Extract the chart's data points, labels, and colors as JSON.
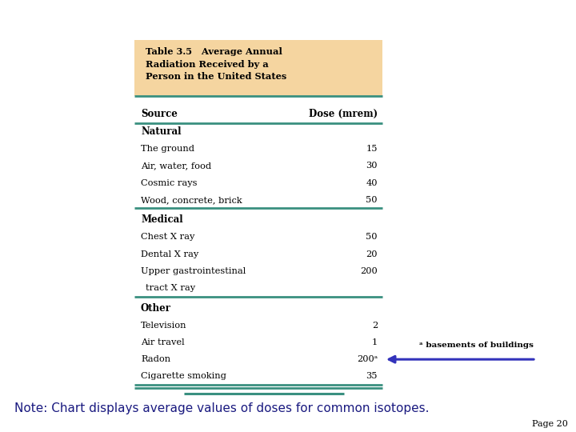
{
  "title_line1": "Table 3.5   Average Annual",
  "title_line2": "Radiation Received by a",
  "title_line3": "Person in the United States",
  "title_bg": "#f5d5a0",
  "col_source": "Source",
  "col_dose": "Dose (mrem)",
  "sections": [
    {
      "header": "Natural",
      "rows": [
        {
          "source": "The ground",
          "dose": "15"
        },
        {
          "source": "Air, water, food",
          "dose": "30"
        },
        {
          "source": "Cosmic rays",
          "dose": "40"
        },
        {
          "source": "Wood, concrete, brick",
          "dose": "50"
        }
      ]
    },
    {
      "header": "Medical",
      "rows": [
        {
          "source": "Chest X ray",
          "dose": "50"
        },
        {
          "source": "Dental X ray",
          "dose": "20"
        },
        {
          "source": "Upper gastrointestinal",
          "dose": "200",
          "dose_row": 0
        },
        {
          "source": "   tract X ray",
          "dose": "",
          "dose_row": -1
        }
      ]
    },
    {
      "header": "Other",
      "rows": [
        {
          "source": "Television",
          "dose": "2"
        },
        {
          "source": "Air travel",
          "dose": "1"
        },
        {
          "source": "Radon",
          "dose": "200ᵃ",
          "is_radon": true
        },
        {
          "source": "Cigarette smoking",
          "dose": "35"
        }
      ]
    }
  ],
  "footnote_label": "ᵃ basements of buildings",
  "arrow_color": "#3333bb",
  "note_text": "Note: Chart displays average values of doses for common isotopes.",
  "page_text": "Page 20",
  "teal_line_color": "#3a9080",
  "bg_color": "#ffffff"
}
